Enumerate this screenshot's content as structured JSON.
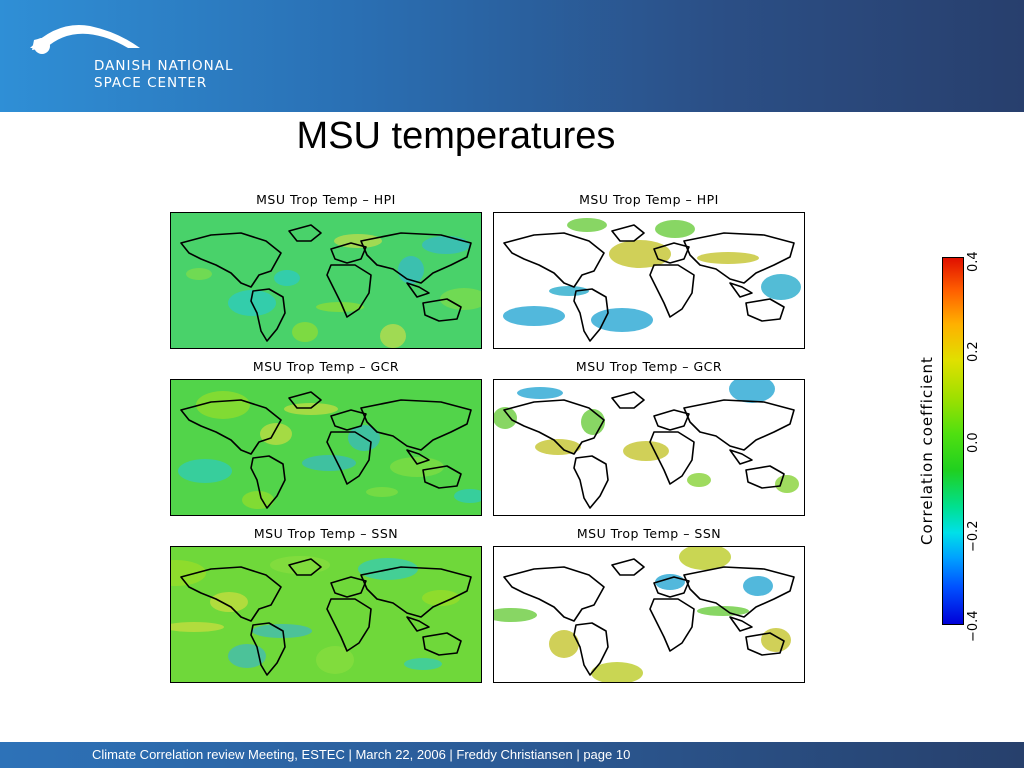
{
  "organization": {
    "name_line1": "DANISH NATIONAL",
    "name_line2": "SPACE CENTER"
  },
  "slide": {
    "title": "MSU temperatures"
  },
  "panels": [
    {
      "title": "MSU Trop Temp – HPI",
      "kind": "full-field",
      "tint": "#49d26a"
    },
    {
      "title": "MSU Trop Temp – HPI",
      "kind": "significant-only",
      "tint": "#1aa6c8"
    },
    {
      "title": "MSU Trop Temp – GCR",
      "kind": "full-field",
      "tint": "#52d44a"
    },
    {
      "title": "MSU Trop Temp – GCR",
      "kind": "significant-only",
      "tint": "#7fcf2a"
    },
    {
      "title": "MSU Trop Temp – SSN",
      "kind": "full-field",
      "tint": "#6fd83a"
    },
    {
      "title": "MSU Trop Temp – SSN",
      "kind": "significant-only",
      "tint": "#b7c81a"
    }
  ],
  "colorbar": {
    "label": "Correlation coefficient",
    "ticks": [
      "0.4",
      "0.2",
      "0.0",
      "−0.2",
      "−0.4"
    ],
    "range": [
      -0.4,
      0.4
    ]
  },
  "footer": {
    "text": "Climate Correlation review Meeting, ESTEC | March 22, 2006 | Freddy Christiansen | page 10"
  },
  "colors": {
    "header_start": "#2f8fd6",
    "header_end": "#283f6d"
  }
}
